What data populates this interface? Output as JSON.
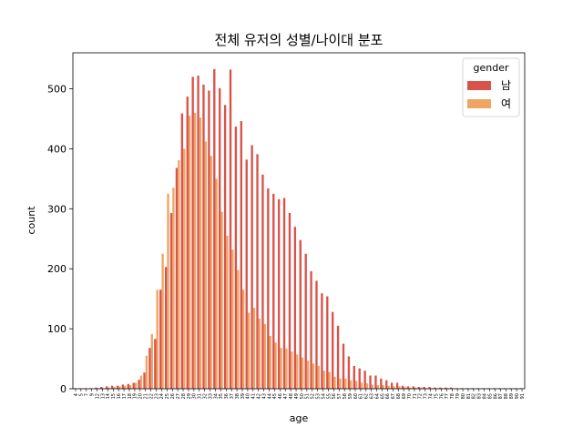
{
  "chart_data": {
    "type": "bar",
    "title": "전체 유저의 성별/나이대 분포",
    "xlabel": "age",
    "ylabel": "count",
    "ylim": [
      0,
      560
    ],
    "yticks": [
      0,
      100,
      200,
      300,
      400,
      500
    ],
    "grid": false,
    "legend": {
      "title": "gender",
      "position": "top-right"
    },
    "colors": {
      "남": "#D9534A",
      "여": "#EFA462"
    },
    "categories": [
      "4",
      "5",
      "7",
      "9",
      "12",
      "13",
      "14",
      "15",
      "16",
      "17",
      "18",
      "19",
      "20",
      "21",
      "22",
      "23",
      "24",
      "25",
      "26",
      "27",
      "28",
      "29",
      "30",
      "31",
      "32",
      "33",
      "34",
      "35",
      "36",
      "37",
      "38",
      "39",
      "40",
      "41",
      "42",
      "43",
      "44",
      "45",
      "46",
      "47",
      "48",
      "49",
      "50",
      "51",
      "52",
      "53",
      "54",
      "55",
      "56",
      "57",
      "58",
      "59",
      "60",
      "61",
      "62",
      "63",
      "64",
      "65",
      "66",
      "67",
      "68",
      "69",
      "70",
      "71",
      "72",
      "73",
      "74",
      "75",
      "76",
      "77",
      "78",
      "79",
      "80",
      "81",
      "82",
      "83",
      "84",
      "85",
      "86",
      "87",
      "88",
      "89",
      "90",
      "91"
    ],
    "series": [
      {
        "name": "남",
        "values": [
          1,
          1,
          1,
          1,
          2,
          3,
          4,
          5,
          5,
          7,
          8,
          10,
          15,
          27,
          68,
          83,
          165,
          203,
          293,
          368,
          459,
          487,
          520,
          522,
          507,
          497,
          533,
          501,
          473,
          532,
          437,
          446,
          382,
          406,
          391,
          357,
          334,
          325,
          316,
          318,
          293,
          270,
          248,
          225,
          196,
          180,
          159,
          154,
          128,
          105,
          75,
          54,
          38,
          34,
          30,
          22,
          22,
          17,
          14,
          10,
          10,
          5,
          4,
          4,
          3,
          3,
          3,
          2,
          2,
          2,
          2,
          1,
          1,
          1,
          1,
          1,
          1,
          1,
          1,
          1,
          1,
          1,
          1,
          1
        ]
      },
      {
        "name": "여",
        "values": [
          0,
          0,
          0,
          0,
          1,
          1,
          2,
          3,
          4,
          5,
          6,
          10,
          22,
          55,
          91,
          165,
          225,
          325,
          335,
          381,
          400,
          455,
          460,
          452,
          412,
          388,
          350,
          295,
          255,
          232,
          198,
          165,
          127,
          135,
          117,
          108,
          88,
          77,
          68,
          67,
          62,
          57,
          52,
          47,
          42,
          38,
          30,
          28,
          20,
          17,
          17,
          14,
          13,
          10,
          9,
          7,
          6,
          6,
          5,
          4,
          4,
          3,
          2,
          2,
          2,
          1,
          1,
          1,
          1,
          1,
          1,
          0,
          0,
          0,
          0,
          0,
          0,
          0,
          0,
          0,
          0,
          0,
          0,
          0
        ]
      }
    ]
  }
}
